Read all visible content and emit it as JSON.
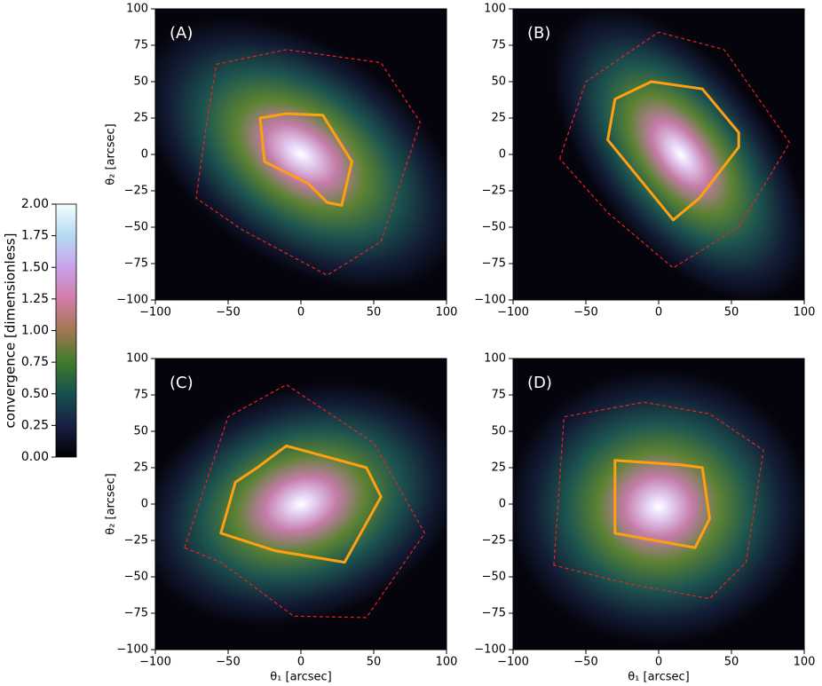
{
  "chart_data": [
    {
      "type": "map",
      "panel_label": "(A)",
      "ylabel": "θ₂ [arcsec]",
      "xlim": [
        -100,
        100
      ],
      "ylim": [
        -100,
        100
      ],
      "xticks": [
        -100,
        -50,
        0,
        50,
        100
      ],
      "yticks": [
        -100,
        -75,
        -50,
        -25,
        0,
        25,
        50,
        75,
        100
      ],
      "series": [
        {
          "color": "#e8241c",
          "dashed": true,
          "x": [
            -58,
            -10,
            55,
            82,
            55,
            18,
            -40,
            -72,
            -65
          ],
          "y": [
            62,
            72,
            63,
            22,
            -60,
            -83,
            -52,
            -30,
            20
          ]
        },
        {
          "color": "#ffa010",
          "dashed": false,
          "x": [
            -28,
            -10,
            15,
            35,
            28,
            18,
            5,
            -25
          ],
          "y": [
            25,
            28,
            27,
            -5,
            -35,
            -33,
            -20,
            -5
          ]
        }
      ]
    },
    {
      "type": "map",
      "panel_label": "(B)",
      "xlim": [
        -100,
        100
      ],
      "ylim": [
        -100,
        100
      ],
      "xticks": [
        -100,
        -50,
        0,
        50,
        100
      ],
      "yticks": [
        -100,
        -75,
        -50,
        -25,
        0,
        25,
        50,
        75,
        100
      ],
      "series": [
        {
          "color": "#e8241c",
          "dashed": true,
          "x": [
            -68,
            -50,
            0,
            45,
            90,
            55,
            10,
            -35
          ],
          "y": [
            -3,
            50,
            84,
            72,
            8,
            -50,
            -78,
            -40
          ]
        },
        {
          "color": "#ffa010",
          "dashed": false,
          "x": [
            -35,
            -30,
            -5,
            30,
            55,
            55,
            28,
            10
          ],
          "y": [
            10,
            38,
            50,
            45,
            15,
            5,
            -30,
            -45
          ]
        }
      ]
    },
    {
      "type": "map",
      "panel_label": "(C)",
      "xlabel": "θ₁ [arcsec]",
      "ylabel": "θ₂ [arcsec]",
      "xlim": [
        -100,
        100
      ],
      "ylim": [
        -100,
        100
      ],
      "xticks": [
        -100,
        -50,
        0,
        50,
        100
      ],
      "yticks": [
        -100,
        -75,
        -50,
        -25,
        0,
        25,
        50,
        75,
        100
      ],
      "series": [
        {
          "color": "#e8241c",
          "dashed": true,
          "x": [
            -80,
            -50,
            -10,
            50,
            85,
            45,
            -5,
            -55
          ],
          "y": [
            -30,
            60,
            82,
            42,
            -20,
            -78,
            -77,
            -40
          ]
        },
        {
          "color": "#ffa010",
          "dashed": false,
          "x": [
            -45,
            -30,
            -10,
            45,
            55,
            30,
            -18,
            -55
          ],
          "y": [
            15,
            25,
            40,
            25,
            5,
            -40,
            -32,
            -20
          ]
        }
      ]
    },
    {
      "type": "map",
      "panel_label": "(D)",
      "xlabel": "θ₁ [arcsec]",
      "xlim": [
        -100,
        100
      ],
      "ylim": [
        -100,
        100
      ],
      "xticks": [
        -100,
        -50,
        0,
        50,
        100
      ],
      "yticks": [
        -100,
        -75,
        -50,
        -25,
        0,
        25,
        50,
        75,
        100
      ],
      "series": [
        {
          "color": "#e8241c",
          "dashed": true,
          "x": [
            -72,
            -65,
            -10,
            35,
            72,
            60,
            35,
            -20
          ],
          "y": [
            -42,
            60,
            70,
            62,
            37,
            -40,
            -65,
            -55
          ]
        },
        {
          "color": "#ffa010",
          "dashed": false,
          "x": [
            -30,
            15,
            30,
            35,
            25,
            -30
          ],
          "y": [
            30,
            27,
            25,
            -10,
            -30,
            -20
          ]
        }
      ]
    },
    {
      "type": "colorbar",
      "label": "convergence [dimensionless]",
      "ylim": [
        0,
        2
      ],
      "yticks": [
        {
          "value": 0,
          "label": "0.00"
        },
        {
          "value": 0.25,
          "label": "0.25"
        },
        {
          "value": 0.5,
          "label": "0.50"
        },
        {
          "value": 0.75,
          "label": "0.75"
        },
        {
          "value": 1,
          "label": "1.00"
        },
        {
          "value": 1.25,
          "label": "1.25"
        },
        {
          "value": 1.5,
          "label": "1.50"
        },
        {
          "value": 1.75,
          "label": "1.75"
        },
        {
          "value": 2,
          "label": "2.00"
        }
      ]
    }
  ]
}
